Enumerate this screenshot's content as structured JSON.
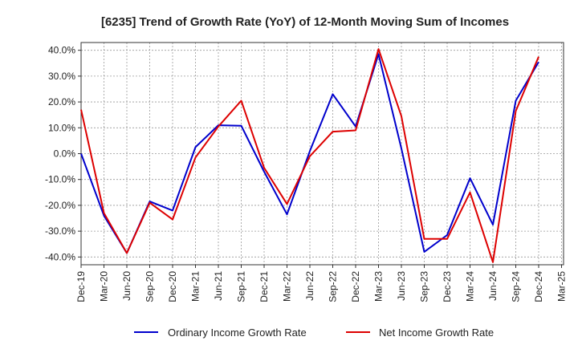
{
  "chart_data": {
    "type": "line",
    "title": "[6235]  Trend of Growth Rate (YoY) of 12-Month Moving Sum of Incomes",
    "xlabel": "",
    "ylabel": "",
    "ylim": [
      -43,
      43
    ],
    "yticks": [
      "40.0%",
      "30.0%",
      "20.0%",
      "10.0%",
      "0.0%",
      "-10.0%",
      "-20.0%",
      "-30.0%",
      "-40.0%"
    ],
    "ytick_values": [
      40,
      30,
      20,
      10,
      0,
      -10,
      -20,
      -30,
      -40
    ],
    "x_tick_labels": [
      "Dec-19",
      "Mar-20",
      "Jun-20",
      "Sep-20",
      "Dec-20",
      "Mar-21",
      "Jun-21",
      "Sep-21",
      "Dec-21",
      "Mar-22",
      "Jun-22",
      "Sep-22",
      "Dec-22",
      "Mar-23",
      "Jun-23",
      "Sep-23",
      "Dec-23",
      "Mar-24",
      "Jun-24",
      "Sep-24",
      "Dec-24",
      "Mar-25"
    ],
    "grid": true,
    "legend_position": "bottom",
    "series": [
      {
        "name": "Ordinary Income Growth Rate",
        "color": "#0000cc",
        "values": [
          0.0,
          -24.0,
          -38.5,
          -18.5,
          -22.0,
          2.5,
          11.0,
          10.8,
          -7.0,
          -23.5,
          1.0,
          23.0,
          10.5,
          38.5,
          2.0,
          -38.0,
          -31.5,
          -9.5,
          -27.5,
          20.5,
          35.5
        ]
      },
      {
        "name": "Net Income Growth Rate",
        "color": "#dd0000",
        "values": [
          17.0,
          -23.0,
          -38.5,
          -19.0,
          -25.5,
          -1.5,
          10.5,
          20.5,
          -5.5,
          -19.5,
          -1.0,
          8.5,
          9.0,
          40.5,
          14.5,
          -33.0,
          -33.0,
          -15.0,
          -42.0,
          16.5,
          37.5
        ]
      }
    ]
  }
}
